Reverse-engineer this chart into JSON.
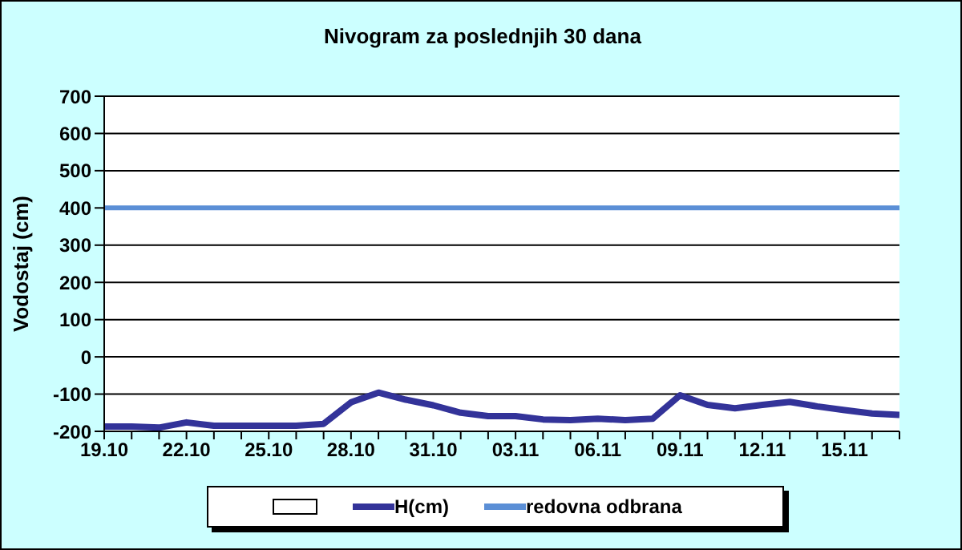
{
  "chart_data": {
    "type": "line",
    "title": "Nivogram za poslednjih 30 dana",
    "ylabel": "Vodostaj (cm)",
    "categories": [
      "19.10",
      null,
      null,
      "22.10",
      null,
      null,
      "25.10",
      null,
      null,
      "28.10",
      null,
      null,
      "31.10",
      null,
      null,
      "03.11",
      null,
      null,
      "06.11",
      null,
      null,
      "09.11",
      null,
      null,
      "12.11",
      null,
      null,
      "15.11",
      null,
      null
    ],
    "series": [
      {
        "name": "H(cm)",
        "color": "#333399",
        "values": [
          -187,
          -187,
          -190,
          -176,
          -185,
          -185,
          -185,
          -185,
          -180,
          -122,
          -96,
          -115,
          -130,
          -150,
          -159,
          -159,
          -168,
          -170,
          -166,
          -170,
          -166,
          -103,
          -129,
          -138,
          -129,
          -121,
          -133,
          -143,
          -152,
          -156
        ]
      }
    ],
    "ref_lines": [
      {
        "axis": "y",
        "value": 400,
        "label": "redovna odbrana",
        "color": "#5b8fd6"
      }
    ],
    "ylim": [
      -200,
      700
    ],
    "yticks": [
      -200,
      -100,
      0,
      100,
      200,
      300,
      400,
      500,
      600,
      700
    ],
    "grid": "y",
    "legend": "bottom",
    "marker": "none",
    "line_style": "solid"
  }
}
